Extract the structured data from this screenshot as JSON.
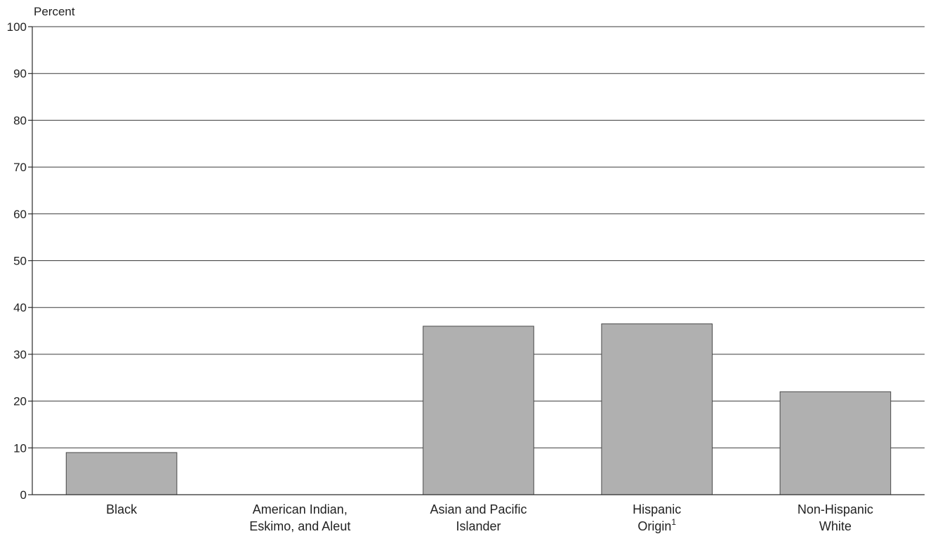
{
  "chart_data": {
    "type": "bar",
    "ylabel": "Percent",
    "categories": [
      [
        "Black"
      ],
      [
        "American Indian,",
        "Eskimo, and Aleut"
      ],
      [
        "Asian and Pacific",
        "Islander"
      ],
      [
        "Hispanic",
        "Origin",
        "1"
      ],
      [
        "Non-Hispanic",
        "White"
      ]
    ],
    "values": [
      9,
      null,
      36,
      36.5,
      22
    ],
    "ylim": [
      0,
      100
    ],
    "yticks": [
      "0",
      "10",
      "20",
      "30",
      "40",
      "50",
      "60",
      "70",
      "80",
      "90",
      "100"
    ],
    "grid": true,
    "bar_color": "#b0b0b0"
  }
}
